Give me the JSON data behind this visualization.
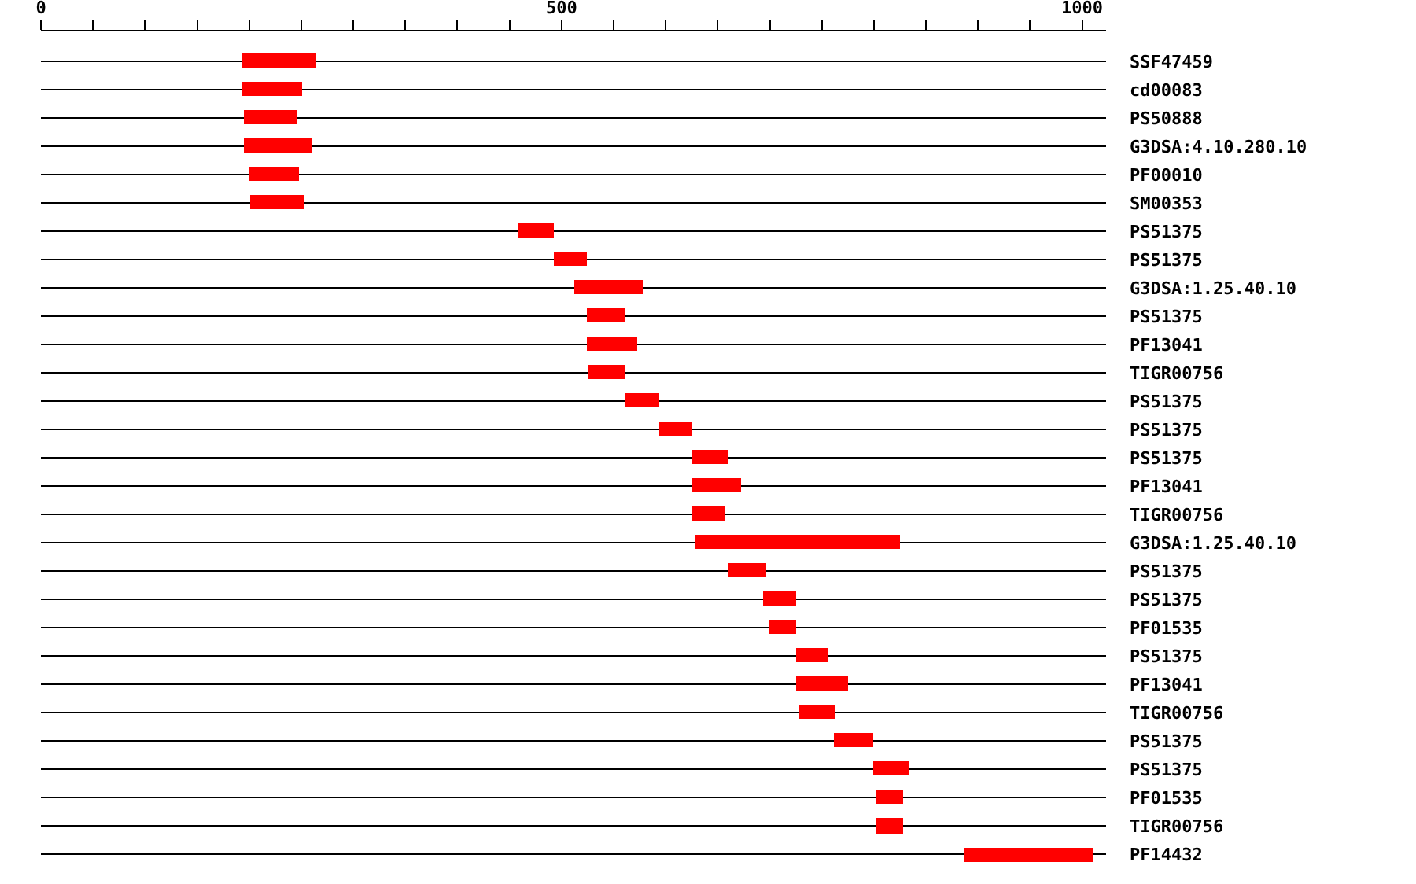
{
  "chart_data": {
    "type": "bar",
    "orientation": "horizontal",
    "categories": [
      "SSF47459",
      "cd00083",
      "PS50888",
      "G3DSA:4.10.280.10",
      "PF00010",
      "SM00353",
      "PS51375",
      "PS51375",
      "G3DSA:1.25.40.10",
      "PS51375",
      "PF13041",
      "TIGR00756",
      "PS51375",
      "PS51375",
      "PS51375",
      "PF13041",
      "TIGR00756",
      "G3DSA:1.25.40.10",
      "PS51375",
      "PS51375",
      "PF01535",
      "PS51375",
      "PF13041",
      "TIGR00756",
      "PS51375",
      "PS51375",
      "PF01535",
      "TIGR00756",
      "PF14432"
    ],
    "base": [
      193,
      193,
      195,
      195,
      199,
      201,
      458,
      493,
      513,
      525,
      525,
      526,
      560,
      594,
      625,
      625,
      626,
      628,
      660,
      694,
      699,
      726,
      726,
      728,
      761,
      799,
      802,
      802,
      887
    ],
    "values": [
      71,
      58,
      51,
      65,
      49,
      51,
      35,
      32,
      65,
      35,
      47,
      35,
      34,
      31,
      35,
      47,
      32,
      197,
      36,
      32,
      27,
      30,
      49,
      35,
      38,
      35,
      26,
      26,
      124
    ],
    "color": "#ff0000",
    "xlim": [
      0,
      1023
    ],
    "xticks": [
      0,
      {
        "value": 50,
        "label": null
      },
      {
        "value": 100,
        "label": null
      },
      {
        "value": 150,
        "label": null
      },
      {
        "value": 200,
        "label": null
      },
      {
        "value": 250,
        "label": null
      },
      {
        "value": 300,
        "label": null
      },
      {
        "value": 350,
        "label": null
      },
      {
        "value": 400,
        "label": null
      },
      {
        "value": 450,
        "label": null
      },
      500,
      {
        "value": 550,
        "label": null
      },
      {
        "value": 600,
        "label": null
      },
      {
        "value": 650,
        "label": null
      },
      {
        "value": 700,
        "label": null
      },
      {
        "value": 750,
        "label": null
      },
      {
        "value": 800,
        "label": null
      },
      {
        "value": 850,
        "label": null
      },
      {
        "value": 900,
        "label": null
      },
      {
        "value": 950,
        "label": null
      },
      1000
    ],
    "grid": "y"
  }
}
